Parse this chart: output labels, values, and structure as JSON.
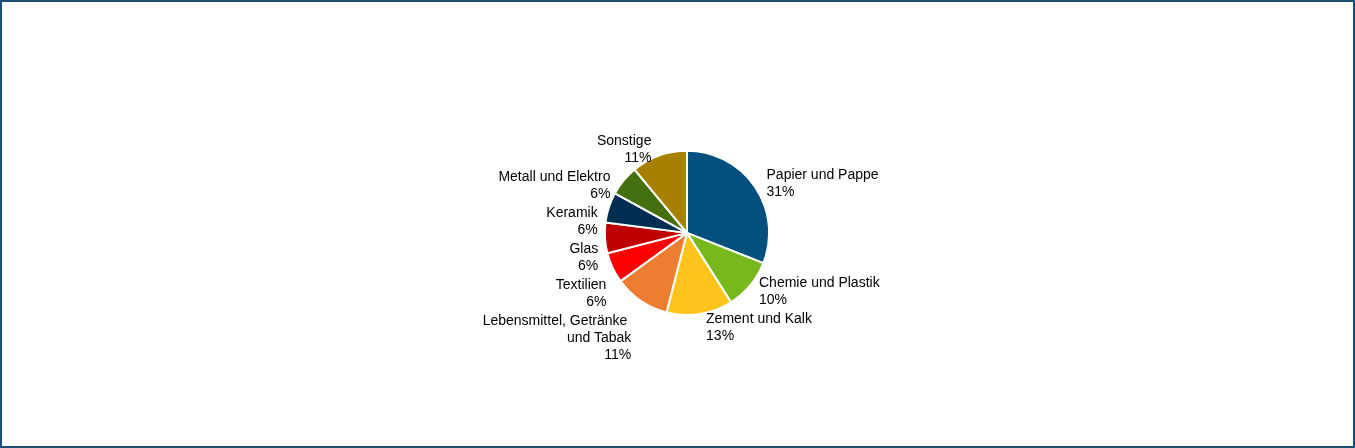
{
  "chart_data": {
    "type": "pie",
    "categories": [
      "Papier und Pappe",
      "Chemie und Plastik",
      "Zement und Kalk",
      "Lebensmittel, Getränke und Tabak",
      "Textilien",
      "Glas",
      "Keramik",
      "Metall und Elektro",
      "Sonstige"
    ],
    "values": [
      31,
      10,
      13,
      11,
      6,
      6,
      6,
      6,
      11
    ],
    "value_labels": [
      "31%",
      "10%",
      "13%",
      "11%",
      "6%",
      "6%",
      "6%",
      "6%",
      "11%"
    ],
    "colors": [
      "#03507f",
      "#77b81c",
      "#fec41b",
      "#ed7d31",
      "#fe0000",
      "#c00000",
      "#002e50",
      "#44700f",
      "#a78000"
    ]
  }
}
